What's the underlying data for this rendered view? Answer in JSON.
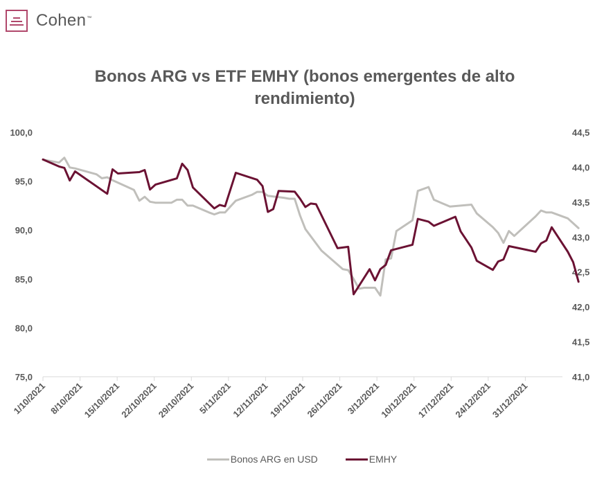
{
  "header": {
    "brand": "Cohen",
    "brand_tm": "™",
    "brand_color": "#b0476b",
    "logo_icon": "cohen-logo-icon"
  },
  "chart_data": {
    "type": "line",
    "title": "Bonos ARG vs ETF EMHY (bonos emergentes de alto rendimiento)",
    "x_ticks": [
      "1/10/2021",
      "8/10/2021",
      "15/10/2021",
      "22/10/2021",
      "29/10/2021",
      "5/11/2021",
      "12/11/2021",
      "19/11/2021",
      "26/11/2021",
      "3/12/2021",
      "10/12/2021",
      "17/12/2021",
      "24/12/2021",
      "31/12/2021"
    ],
    "x_range": [
      "2021-10-01",
      "2022-01-06"
    ],
    "y_left": {
      "ylim": [
        75,
        100
      ],
      "ticks": [
        "100,0",
        "95,0",
        "90,0",
        "85,0",
        "80,0",
        "75,0"
      ]
    },
    "y_right": {
      "ylim": [
        41.0,
        44.5
      ],
      "ticks": [
        "44,5",
        "44,0",
        "43,5",
        "43,0",
        "42,5",
        "42,0",
        "41,5",
        "41,0"
      ]
    },
    "legend_position": "bottom",
    "grid": false,
    "series": [
      {
        "name": "Bonos ARG en USD",
        "axis": "left",
        "color": "#c0bfbb",
        "points": [
          [
            "2021-10-01",
            97.2
          ],
          [
            "2021-10-04",
            96.9
          ],
          [
            "2021-10-05",
            97.4
          ],
          [
            "2021-10-06",
            96.4
          ],
          [
            "2021-10-07",
            96.3
          ],
          [
            "2021-10-11",
            95.7
          ],
          [
            "2021-10-12",
            95.3
          ],
          [
            "2021-10-13",
            95.4
          ],
          [
            "2021-10-14",
            95.1
          ],
          [
            "2021-10-18",
            94.1
          ],
          [
            "2021-10-19",
            93.0
          ],
          [
            "2021-10-20",
            93.4
          ],
          [
            "2021-10-21",
            92.9
          ],
          [
            "2021-10-22",
            92.8
          ],
          [
            "2021-10-25",
            92.8
          ],
          [
            "2021-10-26",
            93.1
          ],
          [
            "2021-10-27",
            93.1
          ],
          [
            "2021-10-28",
            92.5
          ],
          [
            "2021-10-29",
            92.5
          ],
          [
            "2021-11-01",
            91.8
          ],
          [
            "2021-11-02",
            91.6
          ],
          [
            "2021-11-03",
            91.8
          ],
          [
            "2021-11-04",
            91.8
          ],
          [
            "2021-11-05",
            92.4
          ],
          [
            "2021-11-06",
            93.0
          ],
          [
            "2021-11-09",
            93.6
          ],
          [
            "2021-11-10",
            93.9
          ],
          [
            "2021-11-11",
            93.9
          ],
          [
            "2021-11-12",
            93.5
          ],
          [
            "2021-11-15",
            93.3
          ],
          [
            "2021-11-16",
            93.2
          ],
          [
            "2021-11-17",
            93.2
          ],
          [
            "2021-11-18",
            91.5
          ],
          [
            "2021-11-19",
            90.1
          ],
          [
            "2021-11-22",
            87.9
          ],
          [
            "2021-11-26",
            86.0
          ],
          [
            "2021-11-27",
            85.9
          ],
          [
            "2021-11-28",
            85.0
          ],
          [
            "2021-11-29",
            84.0
          ],
          [
            "2021-11-30",
            84.1
          ],
          [
            "2021-12-02",
            84.1
          ],
          [
            "2021-12-03",
            83.3
          ],
          [
            "2021-12-04",
            87.0
          ],
          [
            "2021-12-05",
            87.1
          ],
          [
            "2021-12-06",
            89.9
          ],
          [
            "2021-12-09",
            91.0
          ],
          [
            "2021-12-10",
            94.0
          ],
          [
            "2021-12-12",
            94.4
          ],
          [
            "2021-12-13",
            93.1
          ],
          [
            "2021-12-16",
            92.4
          ],
          [
            "2021-12-20",
            92.6
          ],
          [
            "2021-12-21",
            91.7
          ],
          [
            "2021-12-24",
            90.3
          ],
          [
            "2021-12-25",
            89.7
          ],
          [
            "2021-12-26",
            88.7
          ],
          [
            "2021-12-27",
            89.9
          ],
          [
            "2021-12-28",
            89.4
          ],
          [
            "2022-01-01",
            91.4
          ],
          [
            "2022-01-02",
            92.0
          ],
          [
            "2022-01-03",
            91.8
          ],
          [
            "2022-01-04",
            91.8
          ],
          [
            "2022-01-07",
            91.2
          ],
          [
            "2022-01-09",
            90.2
          ]
        ]
      },
      {
        "name": "EMHY",
        "axis": "right",
        "color": "#6b1233",
        "points": [
          [
            "2021-10-01",
            44.11
          ],
          [
            "2021-10-04",
            44.01
          ],
          [
            "2021-10-05",
            43.99
          ],
          [
            "2021-10-06",
            43.81
          ],
          [
            "2021-10-07",
            43.94
          ],
          [
            "2021-10-13",
            43.62
          ],
          [
            "2021-10-14",
            43.97
          ],
          [
            "2021-10-15",
            43.91
          ],
          [
            "2021-10-19",
            43.93
          ],
          [
            "2021-10-20",
            43.96
          ],
          [
            "2021-10-21",
            43.68
          ],
          [
            "2021-10-22",
            43.75
          ],
          [
            "2021-10-26",
            43.84
          ],
          [
            "2021-10-27",
            44.05
          ],
          [
            "2021-10-28",
            43.96
          ],
          [
            "2021-10-29",
            43.71
          ],
          [
            "2021-11-02",
            43.41
          ],
          [
            "2021-11-03",
            43.46
          ],
          [
            "2021-11-04",
            43.44
          ],
          [
            "2021-11-06",
            43.92
          ],
          [
            "2021-11-10",
            43.82
          ],
          [
            "2021-11-11",
            43.73
          ],
          [
            "2021-11-12",
            43.36
          ],
          [
            "2021-11-13",
            43.4
          ],
          [
            "2021-11-14",
            43.66
          ],
          [
            "2021-11-17",
            43.65
          ],
          [
            "2021-11-18",
            43.55
          ],
          [
            "2021-11-19",
            43.43
          ],
          [
            "2021-11-20",
            43.48
          ],
          [
            "2021-11-21",
            43.47
          ],
          [
            "2021-11-25",
            42.84
          ],
          [
            "2021-11-27",
            42.86
          ],
          [
            "2021-11-28",
            42.18
          ],
          [
            "2021-12-01",
            42.54
          ],
          [
            "2021-12-02",
            42.38
          ],
          [
            "2021-12-03",
            42.54
          ],
          [
            "2021-12-04",
            42.6
          ],
          [
            "2021-12-05",
            42.81
          ],
          [
            "2021-12-09",
            42.89
          ],
          [
            "2021-12-10",
            43.26
          ],
          [
            "2021-12-12",
            43.22
          ],
          [
            "2021-12-13",
            43.16
          ],
          [
            "2021-12-17",
            43.29
          ],
          [
            "2021-12-18",
            43.08
          ],
          [
            "2021-12-20",
            42.85
          ],
          [
            "2021-12-21",
            42.66
          ],
          [
            "2021-12-24",
            42.53
          ],
          [
            "2021-12-25",
            42.65
          ],
          [
            "2021-12-26",
            42.68
          ],
          [
            "2021-12-27",
            42.87
          ],
          [
            "2022-01-01",
            42.79
          ],
          [
            "2022-01-02",
            42.91
          ],
          [
            "2022-01-03",
            42.95
          ],
          [
            "2022-01-04",
            43.14
          ],
          [
            "2022-01-07",
            42.79
          ],
          [
            "2022-01-08",
            42.64
          ],
          [
            "2022-01-09",
            42.36
          ]
        ]
      }
    ]
  }
}
